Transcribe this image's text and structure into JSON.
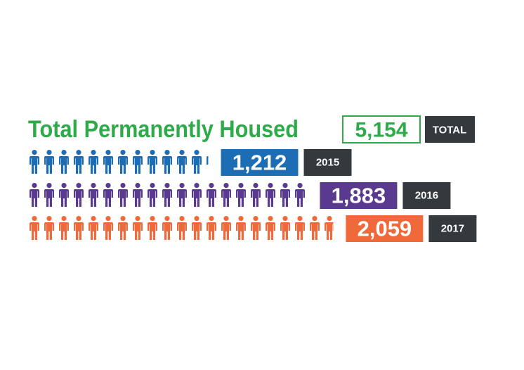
{
  "chart_data": {
    "type": "pictogram",
    "title": "Total Permanently Housed",
    "title_color": "#2eaa4a",
    "total": {
      "value": 5154,
      "label": "5,154"
    },
    "total_caption": "TOTAL",
    "categories": [
      "2015",
      "2016",
      "2017"
    ],
    "values": [
      1212,
      1883,
      2059
    ],
    "value_labels": [
      "1,212",
      "1,883",
      "2,059"
    ],
    "colors": [
      "#1c6db4",
      "#5a3a8e",
      "#f0693b"
    ],
    "caption_color": "#34393d"
  }
}
